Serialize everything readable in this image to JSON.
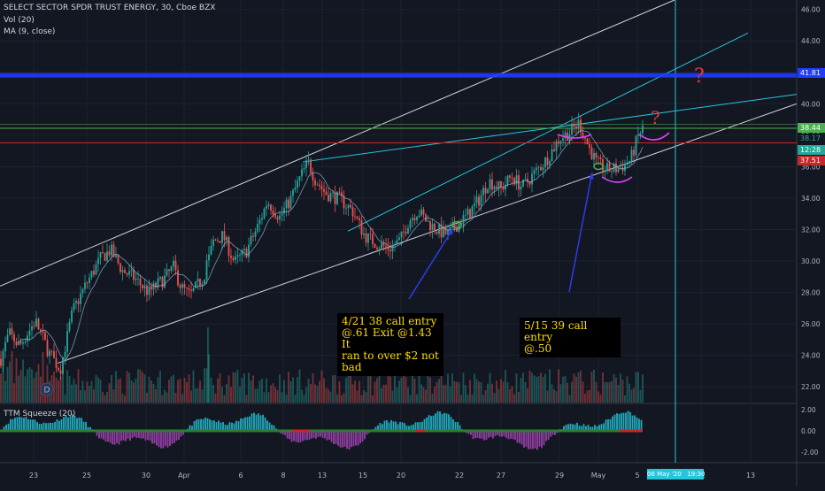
{
  "header": {
    "symbol_title": "SELECT SECTOR SPDR TRUST ENERGY, 30, Cboe BZX",
    "volume_label": "Vol (20)",
    "ma_label": "MA (9, close)"
  },
  "indicator": {
    "label": "TTM Squeeze (20)"
  },
  "annotations": {
    "note1": [
      "4/21 38 call entry",
      "@.61 Exit @1.43 It",
      "ran to over $2 not",
      "bad"
    ],
    "note2": [
      "5/15 39 call entry",
      "@.50"
    ],
    "question_mark": "?"
  },
  "price_tags": {
    "blue_line": "41.81",
    "green_line": "38.44",
    "last_price": "38.17",
    "countdown": "12:28",
    "red_line": "37.51"
  },
  "crosshair_date_label": "06 May '20   19:30",
  "event_badge": "D",
  "colors": {
    "background": "#131722",
    "up": "#26a69a",
    "down": "#ef5350",
    "channel": "#d1d4dc",
    "trendline_cyan": "#26c6da",
    "support_blue": "#1f3cff",
    "resistance_green": "#4caf50",
    "resistance_red": "#c62828",
    "annotation_text": "#ffde00",
    "drawing_magenta": "#e040fb",
    "arrow_blue": "#2c3ee8"
  },
  "chart_data": {
    "type": "candlestick",
    "price_axis": {
      "ylim": [
        21,
        46.6
      ],
      "ticks": [
        "22.00",
        "24.00",
        "26.00",
        "28.00",
        "30.00",
        "32.00",
        "34.00",
        "36.00",
        "38.00",
        "40.00",
        "42.00",
        "44.00",
        "46.00"
      ]
    },
    "time_axis": {
      "ticks": [
        "23",
        "25",
        "30",
        "Apr",
        "6",
        "8",
        "13",
        "15",
        "20",
        "22",
        "27",
        "29",
        "May",
        "5",
        "11",
        "13"
      ]
    },
    "oscillator_axis": {
      "ylim": [
        -2.9,
        2.4
      ],
      "ticks": [
        "2.00",
        "0.00",
        "-2.00"
      ]
    },
    "price_path": [
      [
        0,
        23.6
      ],
      [
        10,
        25.4
      ],
      [
        22,
        24.6
      ],
      [
        40,
        26.2
      ],
      [
        55,
        24.2
      ],
      [
        68,
        23.1
      ],
      [
        82,
        26.8
      ],
      [
        98,
        28.6
      ],
      [
        114,
        30.2
      ],
      [
        125,
        30.7
      ],
      [
        138,
        29.4
      ],
      [
        152,
        28.9
      ],
      [
        168,
        28.0
      ],
      [
        186,
        28.9
      ],
      [
        196,
        29.6
      ],
      [
        205,
        28.3
      ],
      [
        215,
        27.8
      ],
      [
        230,
        29.0
      ],
      [
        240,
        31.2
      ],
      [
        252,
        31.6
      ],
      [
        265,
        29.9
      ],
      [
        278,
        30.6
      ],
      [
        292,
        32.3
      ],
      [
        302,
        33.8
      ],
      [
        316,
        32.8
      ],
      [
        328,
        33.9
      ],
      [
        340,
        35.4
      ],
      [
        348,
        36.3
      ],
      [
        356,
        35.2
      ],
      [
        368,
        34.3
      ],
      [
        385,
        33.9
      ],
      [
        398,
        33.2
      ],
      [
        412,
        31.6
      ],
      [
        426,
        31.1
      ],
      [
        440,
        30.8
      ],
      [
        452,
        31.3
      ],
      [
        462,
        32.6
      ],
      [
        472,
        33.2
      ],
      [
        484,
        32.4
      ],
      [
        496,
        31.9
      ],
      [
        506,
        31.7
      ],
      [
        516,
        32.3
      ],
      [
        528,
        32.9
      ],
      [
        540,
        33.8
      ],
      [
        552,
        35.1
      ],
      [
        566,
        34.6
      ],
      [
        578,
        35.4
      ],
      [
        590,
        34.7
      ],
      [
        604,
        35.6
      ],
      [
        618,
        36.5
      ],
      [
        632,
        37.8
      ],
      [
        644,
        38.2
      ],
      [
        654,
        38.8
      ],
      [
        664,
        37.4
      ],
      [
        674,
        36.2
      ],
      [
        686,
        35.8
      ],
      [
        700,
        35.9
      ],
      [
        712,
        36.4
      ],
      [
        722,
        38.1
      ],
      [
        726,
        38.4
      ]
    ],
    "horizontal_levels": [
      {
        "price": 41.81,
        "color": "blue"
      },
      {
        "price": 38.44,
        "color": "green"
      },
      {
        "price": 37.51,
        "color": "red"
      }
    ],
    "oscillator": "TTM Squeeze histogram (teal/magenta) with red/green squeeze dots on zero line"
  }
}
